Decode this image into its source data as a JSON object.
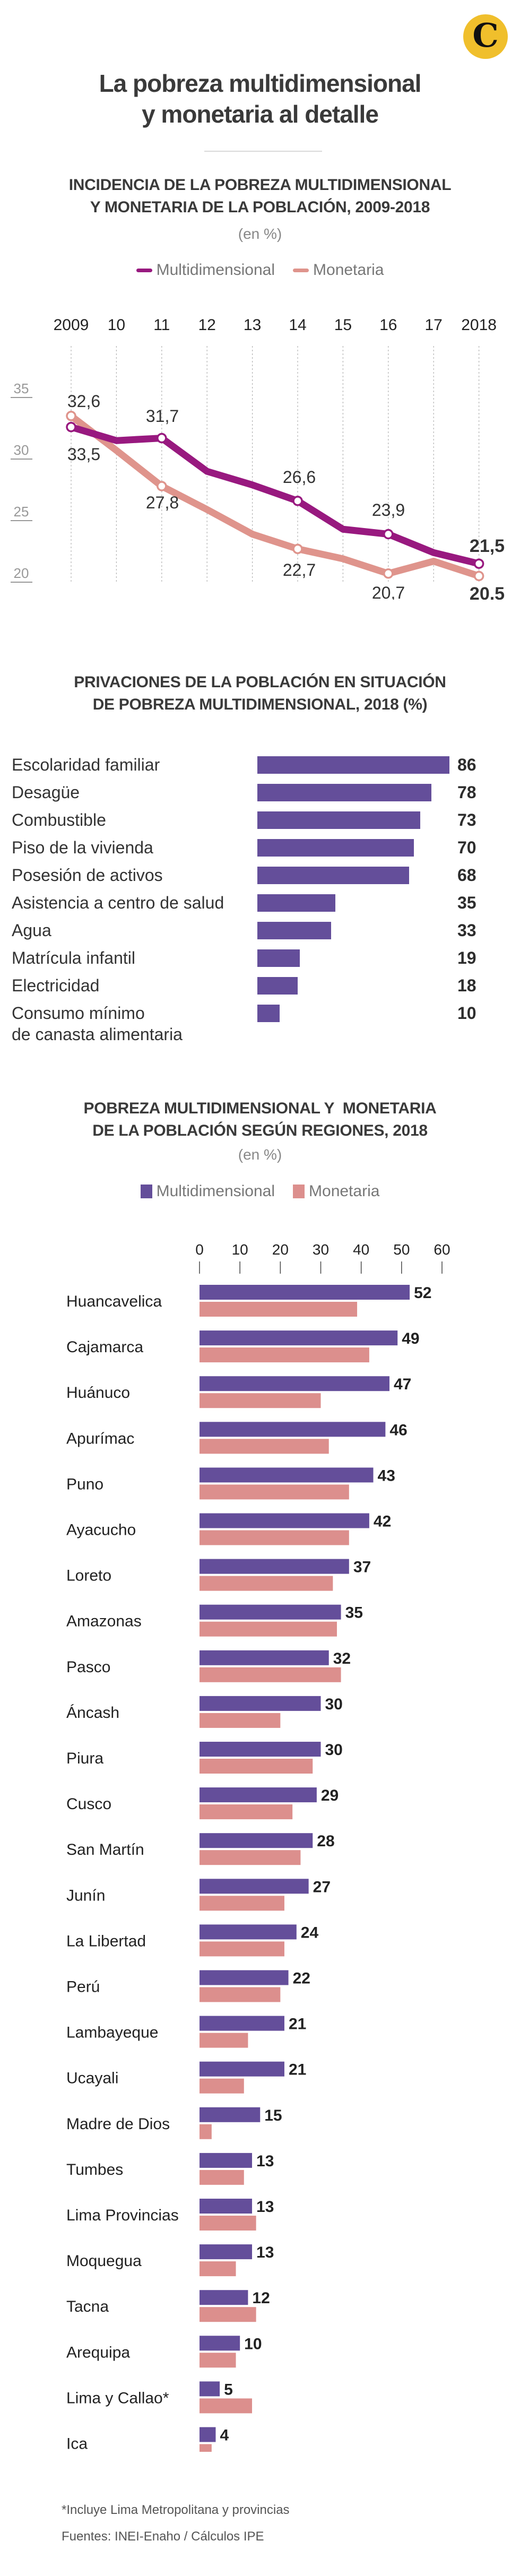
{
  "header": {
    "logo_letter": "C",
    "title_line1": "La pobreza multidimensional",
    "title_line2": "y monetaria al detalle"
  },
  "colors": {
    "logo_bg": "#f0bf2c",
    "line_multidimensional": "#98197f",
    "line_monetaria": "#df948c",
    "bar_multidimensional": "#644e9a",
    "bar_monetaria": "#dc8f8d",
    "text": "#333333"
  },
  "chart_data": [
    {
      "type": "line",
      "title": "INCIDENCIA DE LA POBREZA MULTIDIMENSIONAL Y MONETARIA DE LA POBLACIÓN, 2009-2018",
      "title_line1": "INCIDENCIA DE LA POBREZA MULTIDIMENSIONAL",
      "title_line2": "Y MONETARIA DE LA POBLACIÓN, 2009-2018",
      "subtitle": "(en %)",
      "legend": [
        "Multidimensional",
        "Monetaria"
      ],
      "legend_position": "top",
      "x": [
        "2009",
        "10",
        "11",
        "12",
        "13",
        "14",
        "15",
        "16",
        "17",
        "2018"
      ],
      "yticks": [
        "35",
        "30",
        "25",
        "20"
      ],
      "ylim": [
        19,
        35
      ],
      "grid": "vertical-dotted",
      "series": [
        {
          "name": "Multidimensional",
          "values": [
            32.6,
            31.5,
            31.7,
            29.0,
            27.9,
            26.6,
            24.3,
            23.9,
            22.4,
            21.5
          ],
          "markers": [
            0,
            2,
            5,
            7,
            9
          ]
        },
        {
          "name": "Monetaria",
          "values": [
            33.5,
            30.7,
            27.8,
            25.9,
            23.9,
            22.7,
            21.9,
            20.7,
            21.7,
            20.5
          ],
          "markers": [
            0,
            2,
            5,
            7,
            9
          ]
        }
      ],
      "annotations": [
        {
          "text": "32,6",
          "x": "2009",
          "pos": "above",
          "bold": false
        },
        {
          "text": "33,5",
          "x": "2009",
          "pos": "below",
          "bold": false
        },
        {
          "text": "31,7",
          "x": "11",
          "pos": "above",
          "bold": false
        },
        {
          "text": "27,8",
          "x": "11",
          "pos": "below",
          "bold": false
        },
        {
          "text": "26,6",
          "x": "14",
          "pos": "above",
          "bold": false
        },
        {
          "text": "22,7",
          "x": "14",
          "pos": "below",
          "bold": false
        },
        {
          "text": "23,9",
          "x": "16",
          "pos": "above",
          "bold": false
        },
        {
          "text": "20,7",
          "x": "16",
          "pos": "below",
          "bold": false
        },
        {
          "text": "21,5",
          "x": "2018",
          "pos": "above",
          "bold": true
        },
        {
          "text": "20,5",
          "x": "2018",
          "pos": "below",
          "bold": true
        }
      ]
    },
    {
      "type": "bar",
      "orientation": "horizontal",
      "title": "PRIVACIONES DE LA POBLACIÓN EN SITUACIÓN DE POBREZA MULTIDIMENSIONAL, 2018 (%)",
      "title_line1": "PRIVACIONES DE LA POBLACIÓN EN SITUACIÓN",
      "title_line2": "DE POBREZA MULTIDIMENSIONAL, 2018 (%)",
      "categories": [
        [
          "Escolaridad familiar"
        ],
        [
          "Desagüe"
        ],
        [
          "Combustible"
        ],
        [
          "Piso de la vivienda"
        ],
        [
          "Posesión de activos"
        ],
        [
          "Asistencia a centro de salud"
        ],
        [
          "Agua"
        ],
        [
          "Matrícula infantil"
        ],
        [
          "Electricidad"
        ],
        [
          "Consumo mínimo",
          "de canasta alimentaria"
        ]
      ],
      "values": [
        86,
        78,
        73,
        70,
        68,
        35,
        33,
        19,
        18,
        10
      ],
      "xlim": [
        0,
        86
      ]
    },
    {
      "type": "bar",
      "orientation": "horizontal",
      "title": "POBREZA MULTIDIMENSIONAL Y MONETARIA DE LA POBLACIÓN SEGÚN REGIONES, 2018",
      "title_line1": "POBREZA MULTIDIMENSIONAL Y  MONETARIA",
      "title_line2": "DE LA POBLACIÓN SEGÚN REGIONES, 2018",
      "subtitle": "(en %)",
      "legend": [
        "Multidimensional",
        "Monetaria"
      ],
      "legend_position": "top",
      "xticks": [
        "0",
        "10",
        "20",
        "30",
        "40",
        "50",
        "60"
      ],
      "xlim": [
        0,
        60
      ],
      "categories": [
        "Huancavelica",
        "Cajamarca",
        "Huánuco",
        "Apurímac",
        "Puno",
        "Ayacucho",
        "Loreto",
        "Amazonas",
        "Pasco",
        "Áncash",
        "Piura",
        "Cusco",
        "San Martín",
        "Junín",
        "La Libertad",
        "Perú",
        "Lambayeque",
        "Ucayali",
        "Madre de Dios",
        "Tumbes",
        "Lima Provincias",
        "Moquegua",
        "Tacna",
        "Arequipa",
        "Lima y Callao*",
        "Ica"
      ],
      "series": [
        {
          "name": "Multidimensional",
          "values": [
            52,
            49,
            47,
            46,
            43,
            42,
            37,
            35,
            32,
            30,
            30,
            29,
            28,
            27,
            24,
            22,
            21,
            21,
            15,
            13,
            13,
            13,
            12,
            10,
            5,
            4
          ],
          "labeled": true
        },
        {
          "name": "Monetaria",
          "values": [
            39,
            42,
            30,
            32,
            37,
            37,
            33,
            34,
            35,
            20,
            28,
            23,
            25,
            21,
            21,
            20,
            12,
            11,
            3,
            11,
            14,
            9,
            14,
            9,
            13,
            3
          ],
          "labeled": false
        }
      ]
    }
  ],
  "footer": {
    "note": "*Incluye Lima Metropolitana y provincias",
    "sources": "Fuentes: INEI-Enaho / Cálculos IPE"
  }
}
